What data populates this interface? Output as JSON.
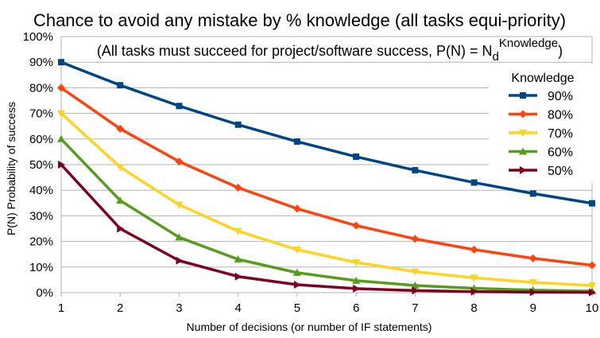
{
  "chart_data": {
    "type": "line",
    "title": "Chance to avoid any mistake by % knowledge (all tasks equi-priority)",
    "subtitle": {
      "prefix": "(All tasks must succeed for project/software success, P(N) = N",
      "sub": "d",
      "sup": "Knowledge",
      "suffix": ")"
    },
    "xlabel": "Number of decisions (or number of IF statements)",
    "ylabel": "P(N)  Probability of success",
    "x": [
      1,
      2,
      3,
      4,
      5,
      6,
      7,
      8,
      9,
      10
    ],
    "xlim": [
      1,
      10
    ],
    "ylim": [
      0,
      100
    ],
    "y_ticks": [
      0,
      10,
      20,
      30,
      40,
      50,
      60,
      70,
      80,
      90,
      100
    ],
    "y_tick_labels": [
      "0%",
      "10%",
      "20%",
      "30%",
      "40%",
      "50%",
      "60%",
      "70%",
      "80%",
      "90%",
      "100%"
    ],
    "x_tick_labels": [
      "1",
      "2",
      "3",
      "4",
      "5",
      "6",
      "7",
      "8",
      "9",
      "10"
    ],
    "grid": "horizontal",
    "legend_title": "Knowledge",
    "legend_position": "right",
    "series": [
      {
        "name": "90%",
        "color": "#004586",
        "marker": "square",
        "values": [
          90,
          81,
          72.9,
          65.6,
          59.0,
          53.1,
          47.8,
          43.0,
          38.7,
          34.9
        ]
      },
      {
        "name": "80%",
        "color": "#ff420e",
        "marker": "diamond",
        "values": [
          80,
          64,
          51.2,
          41.0,
          32.8,
          26.2,
          21.0,
          16.8,
          13.4,
          10.7
        ]
      },
      {
        "name": "70%",
        "color": "#ffd320",
        "marker": "triangle-down",
        "values": [
          70,
          49,
          34.3,
          24.0,
          16.8,
          11.8,
          8.2,
          5.8,
          4.0,
          2.8
        ]
      },
      {
        "name": "60%",
        "color": "#579d1c",
        "marker": "triangle-up",
        "values": [
          60,
          36,
          21.6,
          13.0,
          7.8,
          4.7,
          2.8,
          1.7,
          1.0,
          0.6
        ]
      },
      {
        "name": "50%",
        "color": "#7e0021",
        "marker": "triangle-right",
        "values": [
          50,
          25,
          12.5,
          6.3,
          3.1,
          1.6,
          0.8,
          0.4,
          0.2,
          0.1
        ]
      }
    ]
  }
}
